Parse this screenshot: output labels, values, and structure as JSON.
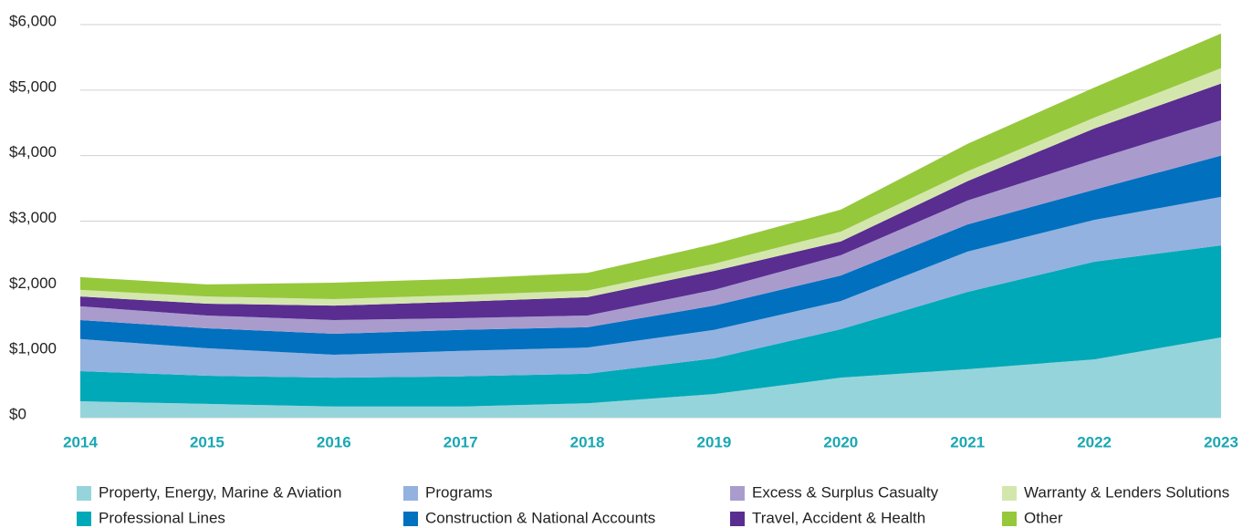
{
  "chart_data": {
    "type": "stacked_area",
    "categories": [
      "2014",
      "2015",
      "2016",
      "2017",
      "2018",
      "2019",
      "2020",
      "2021",
      "2022",
      "2023"
    ],
    "series": [
      {
        "name": "Property, Energy, Marine & Aviation",
        "color": "#96d4dc",
        "values": [
          250,
          210,
          170,
          170,
          220,
          360,
          610,
          740,
          890,
          1225
        ]
      },
      {
        "name": "Professional Lines",
        "color": "#00a9b7",
        "values": [
          460,
          430,
          440,
          460,
          450,
          545,
          740,
          1180,
          1490,
          1405
        ]
      },
      {
        "name": "Programs",
        "color": "#93b2e0",
        "values": [
          490,
          420,
          350,
          390,
          400,
          435,
          430,
          615,
          640,
          740
        ]
      },
      {
        "name": "Construction & National Accounts",
        "color": "#0070bf",
        "values": [
          290,
          305,
          320,
          320,
          310,
          370,
          390,
          415,
          460,
          630
        ]
      },
      {
        "name": "Excess & Surplus Casualty",
        "color": "#a99ccd",
        "values": [
          210,
          195,
          210,
          180,
          180,
          240,
          310,
          365,
          460,
          540
        ]
      },
      {
        "name": "Travel, Accident & Health",
        "color": "#5a2d91",
        "values": [
          150,
          180,
          220,
          250,
          280,
          290,
          210,
          295,
          475,
          560
        ]
      },
      {
        "name": "Warranty & Lenders Solutions",
        "color": "#d3e7ad",
        "values": [
          100,
          110,
          100,
          100,
          100,
          110,
          150,
          150,
          165,
          235
        ]
      },
      {
        "name": "Other",
        "color": "#96c83c",
        "values": [
          195,
          185,
          250,
          250,
          270,
          300,
          335,
          420,
          460,
          530
        ]
      }
    ],
    "ylim": [
      0,
      6000
    ],
    "yticks": [
      {
        "value": 0,
        "label": "$0"
      },
      {
        "value": 1000,
        "label": "$1,000"
      },
      {
        "value": 2000,
        "label": "$2,000"
      },
      {
        "value": 3000,
        "label": "$3,000"
      },
      {
        "value": 4000,
        "label": "$4,000"
      },
      {
        "value": 5000,
        "label": "$5,000"
      },
      {
        "value": 6000,
        "label": "$6,000"
      }
    ],
    "grid": true
  }
}
